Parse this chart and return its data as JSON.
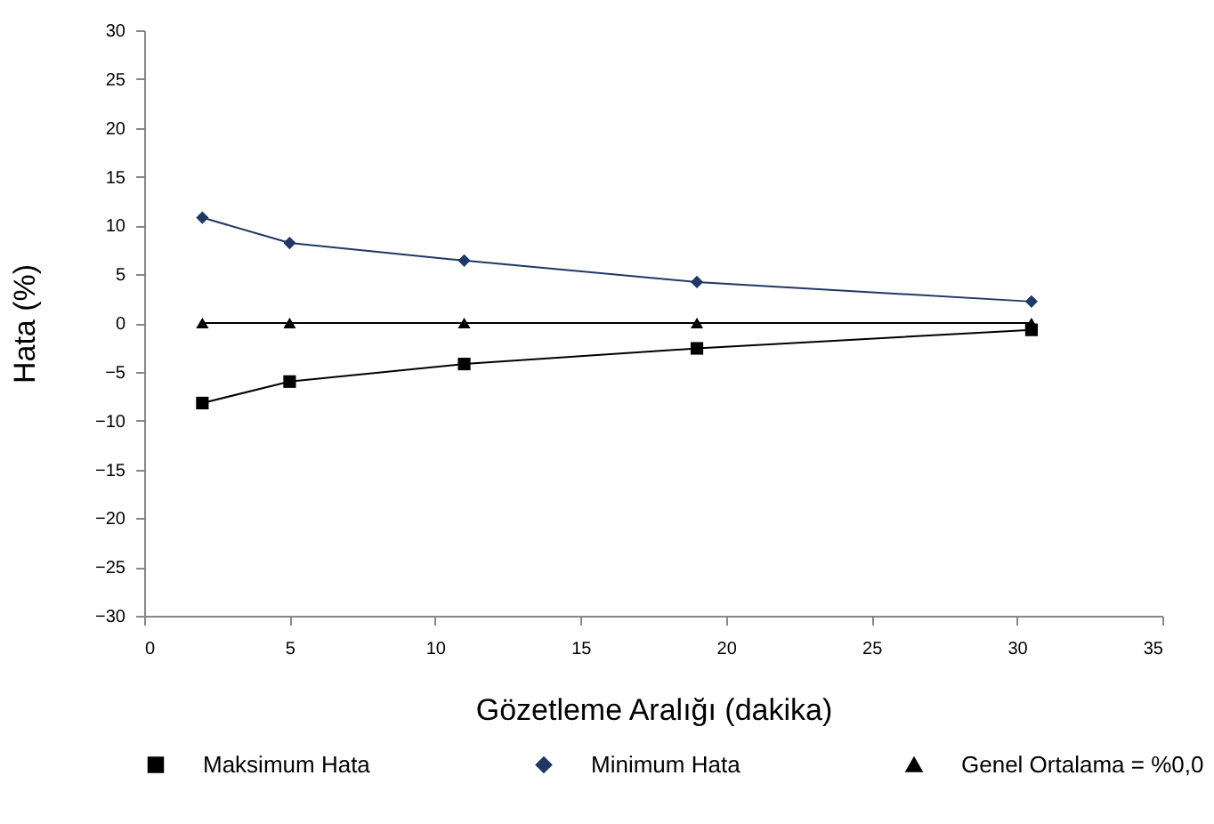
{
  "chart_data": {
    "type": "line",
    "xlabel": "Gözetleme Aralığı (dakika)",
    "ylabel": "Hata (%)",
    "x": [
      2,
      5,
      11,
      19,
      30.5
    ],
    "series": [
      {
        "name": "Maksimum Hata",
        "color": "#000000",
        "marker": "square",
        "values": [
          -8.2,
          -6.0,
          -4.2,
          -2.6,
          -0.7
        ]
      },
      {
        "name": "Minimum Hata",
        "color": "#1f3864",
        "marker": "diamond",
        "values": [
          10.8,
          8.2,
          6.4,
          4.2,
          2.2
        ]
      },
      {
        "name": "Genel Ortalama = %0,0",
        "color": "#000000",
        "marker": "triangle",
        "values": [
          0,
          0,
          0,
          0,
          0
        ]
      }
    ],
    "xlim": [
      0,
      35
    ],
    "xticks": [
      0,
      5,
      10,
      15,
      20,
      25,
      30,
      35
    ],
    "ylim": [
      -30,
      30
    ],
    "yticks": [
      -30,
      -25,
      -20,
      -15,
      -10,
      -5,
      0,
      5,
      10,
      15,
      20,
      25,
      30
    ],
    "grid": false,
    "legend": "bottom",
    "line_style": "solid"
  }
}
